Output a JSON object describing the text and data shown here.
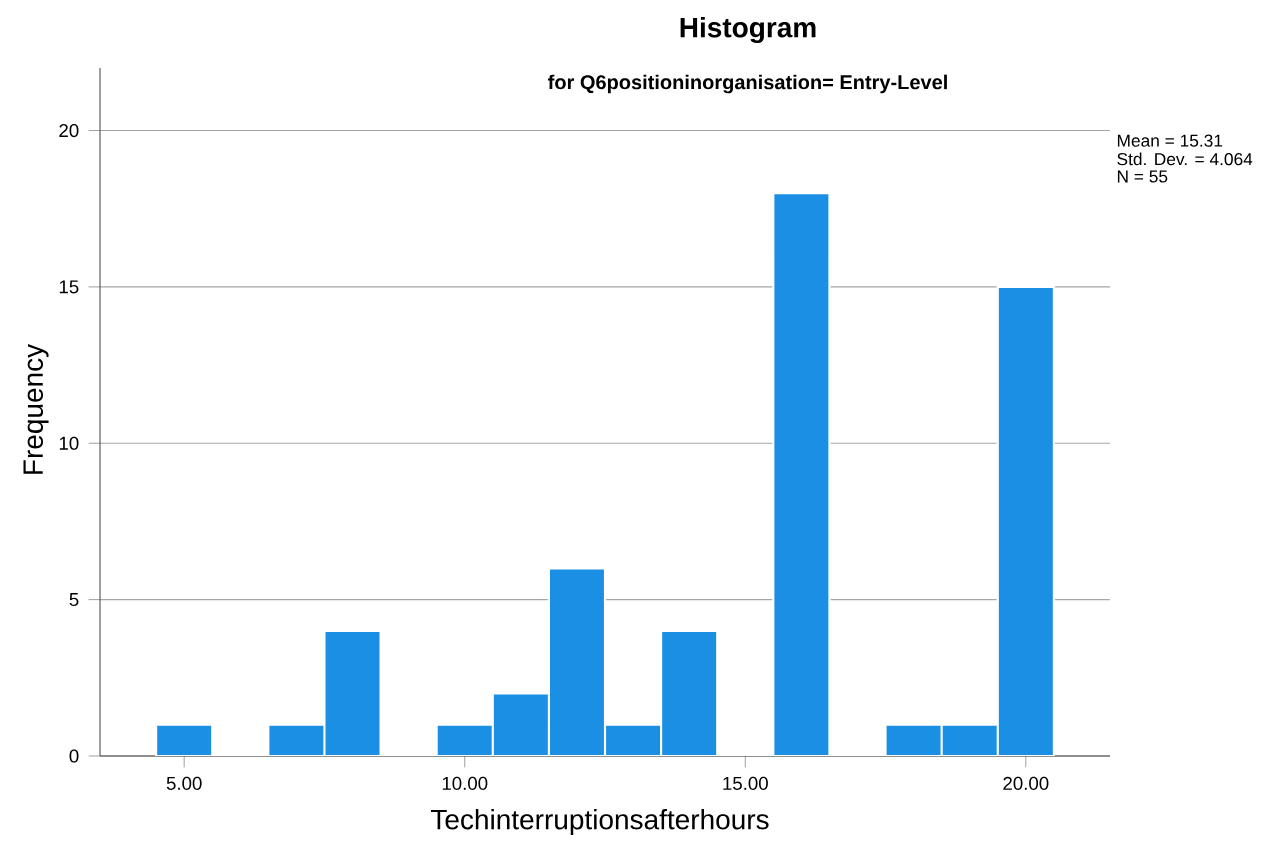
{
  "chart_data": {
    "type": "histogram",
    "title": "Histogram",
    "subtitle": "for Q6positioninorganisation= Entry-Level",
    "xlabel": "Techinterruptionsafterhours",
    "ylabel": "Frequency",
    "bins": [
      4.5,
      5.5,
      6.5,
      7.5,
      8.5,
      9.5,
      10.5,
      11.5,
      12.5,
      13.5,
      14.5,
      15.5,
      16.5,
      17.5,
      18.5,
      19.5,
      20.5
    ],
    "values": [
      1,
      0,
      1,
      4,
      0,
      1,
      2,
      6,
      1,
      4,
      0,
      18,
      0,
      1,
      1,
      15
    ],
    "color": "#1a8fe3",
    "xlim": [
      3.5,
      21.5
    ],
    "ylim": [
      0,
      22
    ],
    "xticks": [
      {
        "value": 5,
        "label": "5.00"
      },
      {
        "value": 10,
        "label": "10.00"
      },
      {
        "value": 15,
        "label": "15.00"
      },
      {
        "value": 20,
        "label": "20.00"
      }
    ],
    "yticks": [
      0,
      5,
      10,
      15,
      20
    ],
    "grid": "y",
    "annotations": [
      "Mean = 15.31",
      "Std. Dev. = 4.064",
      "N = 55"
    ]
  }
}
